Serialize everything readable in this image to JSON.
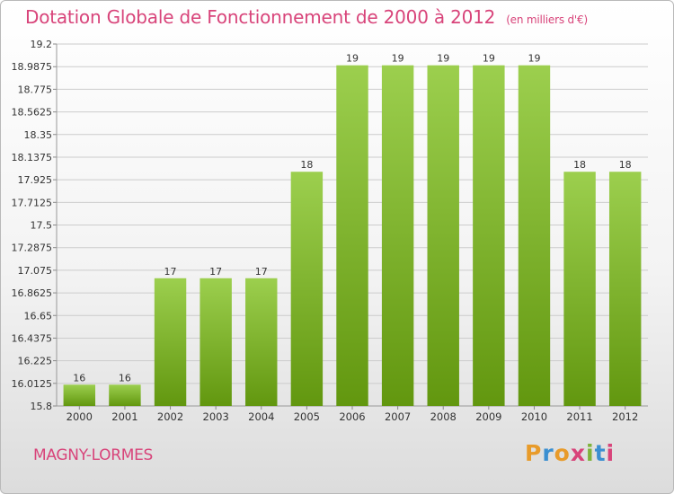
{
  "header": {
    "title": "Dotation Globale de Fonctionnement de 2000 à 2012",
    "unit": "(en milliers d'€)"
  },
  "footer": {
    "commune": "MAGNY-LORMES",
    "logo_text": "Proxiti"
  },
  "colors": {
    "title": "#d8447a",
    "bar_top": "#9ccf4e",
    "bar_bottom": "#62970f",
    "gridline": "#cccccc"
  },
  "chart_data": {
    "type": "bar",
    "categories": [
      "2000",
      "2001",
      "2002",
      "2003",
      "2004",
      "2005",
      "2006",
      "2007",
      "2008",
      "2009",
      "2010",
      "2011",
      "2012"
    ],
    "values": [
      16,
      16,
      17,
      17,
      17,
      18,
      19,
      19,
      19,
      19,
      19,
      18,
      18
    ],
    "data_labels": [
      "16",
      "16",
      "17",
      "17",
      "17",
      "18",
      "19",
      "19",
      "19",
      "19",
      "19",
      "18",
      "18"
    ],
    "ylim": [
      15.8,
      19.2
    ],
    "y_ticks": [
      15.8,
      16.0125,
      16.225,
      16.4375,
      16.65,
      16.8625,
      17.075,
      17.2875,
      17.5,
      17.7125,
      17.925,
      18.1375,
      18.35,
      18.5625,
      18.775,
      18.9875,
      19.2
    ],
    "y_tick_labels": [
      "15.8",
      "16.0125",
      "16.225",
      "16.4375",
      "16.65",
      "16.8625",
      "17.075",
      "17.2875",
      "17.5",
      "17.7125",
      "17.925",
      "18.1375",
      "18.35",
      "18.5625",
      "18.775",
      "18.9875",
      "19.2"
    ],
    "xlabel": "",
    "ylabel": "",
    "grid": true,
    "legend": "none"
  }
}
